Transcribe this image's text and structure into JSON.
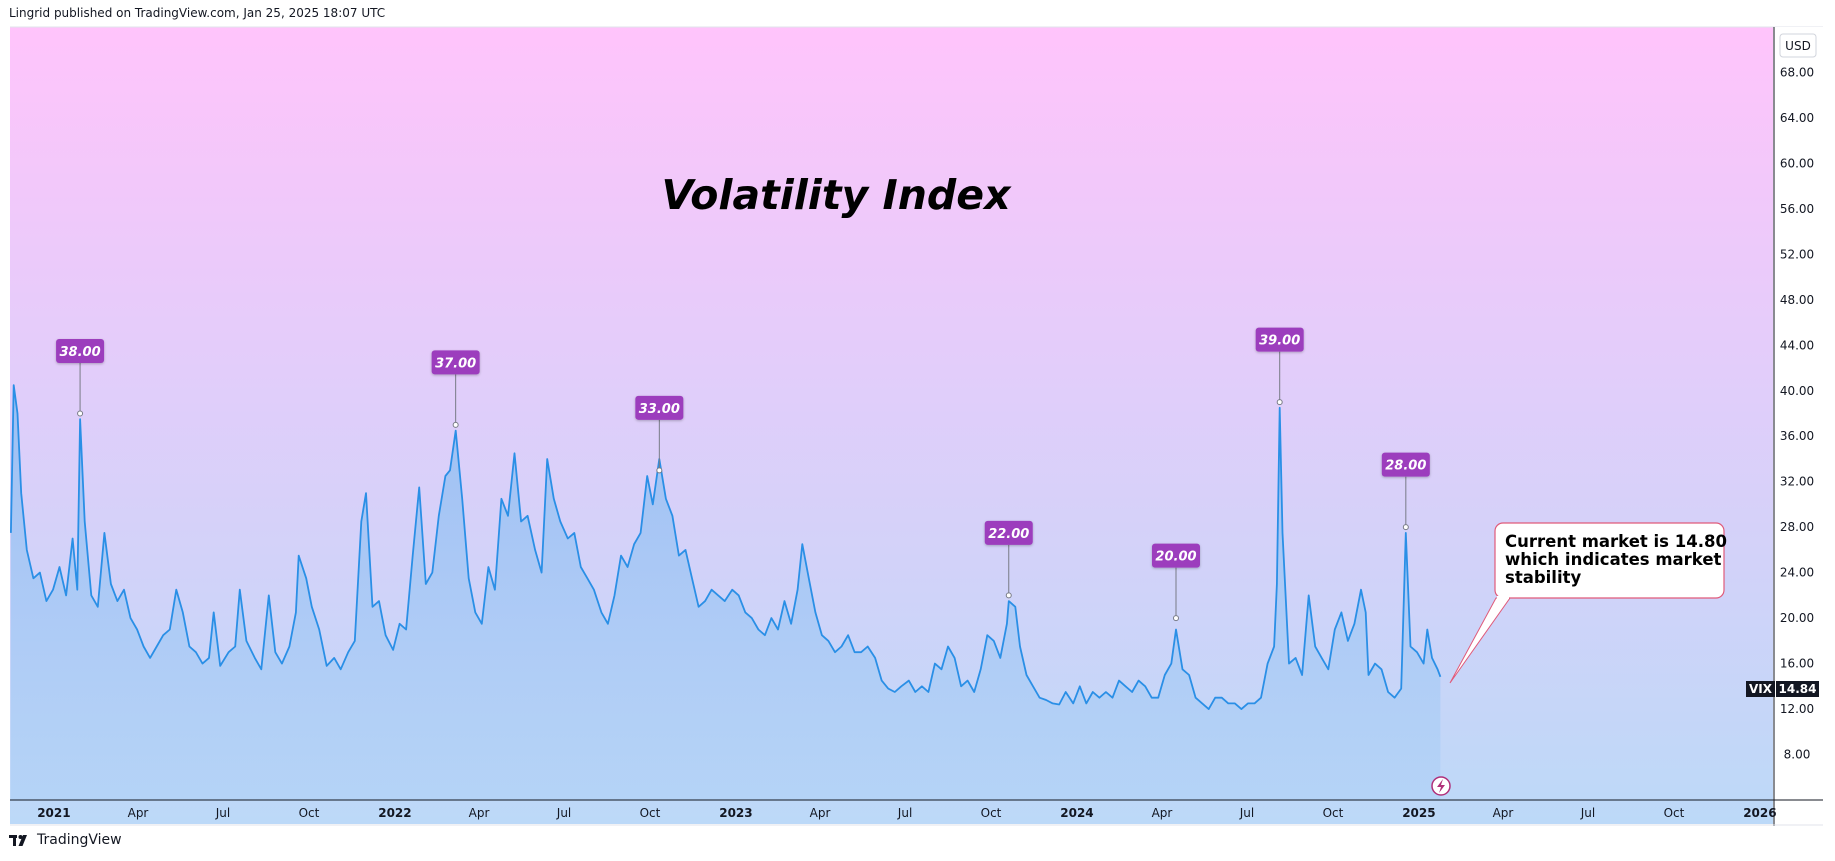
{
  "header": {
    "text": "Lingrid published on TradingView.com, Jan 25, 2025 18:07 UTC"
  },
  "footer": {
    "brand": "TradingView"
  },
  "currency": "USD",
  "last_price": {
    "symbol": "VIX",
    "value": "14.84"
  },
  "note": {
    "lines": [
      "Current market is 14.80",
      "which indicates market",
      "stability"
    ]
  },
  "colors": {
    "line": "#2a8fe6",
    "fill_top": "#8fbcf2",
    "bg_top": "#ffc4fb",
    "bg_bottom": "#bcd9f8",
    "label_bg": "#9c3dbd",
    "note_border": "#e05a7a",
    "peak_stem": "#787b86"
  },
  "chart_data": {
    "type": "area",
    "title": "Volatility Index",
    "ylim": [
      4,
      72
    ],
    "yticks": [
      "8.00",
      "12.00",
      "16.00",
      "20.00",
      "24.00",
      "28.00",
      "32.00",
      "36.00",
      "40.00",
      "44.00",
      "48.00",
      "52.00",
      "56.00",
      "60.00",
      "64.00",
      "68.00"
    ],
    "xlim": [
      "2020-11-15",
      "2026-01-15"
    ],
    "xticks": [
      {
        "label": "2021",
        "date": "2021-01-01",
        "bold": true
      },
      {
        "label": "Apr",
        "date": "2021-04-01"
      },
      {
        "label": "Jul",
        "date": "2021-07-01"
      },
      {
        "label": "Oct",
        "date": "2021-10-01"
      },
      {
        "label": "2022",
        "date": "2022-01-01",
        "bold": true
      },
      {
        "label": "Apr",
        "date": "2022-04-01"
      },
      {
        "label": "Jul",
        "date": "2022-07-01"
      },
      {
        "label": "Oct",
        "date": "2022-10-01"
      },
      {
        "label": "2023",
        "date": "2023-01-01",
        "bold": true
      },
      {
        "label": "Apr",
        "date": "2023-04-01"
      },
      {
        "label": "Jul",
        "date": "2023-07-01"
      },
      {
        "label": "Oct",
        "date": "2023-10-01"
      },
      {
        "label": "2024",
        "date": "2024-01-01",
        "bold": true
      },
      {
        "label": "Apr",
        "date": "2024-04-01"
      },
      {
        "label": "Jul",
        "date": "2024-07-01"
      },
      {
        "label": "Oct",
        "date": "2024-10-01"
      },
      {
        "label": "2025",
        "date": "2025-01-01",
        "bold": true
      },
      {
        "label": "Apr",
        "date": "2025-04-01"
      },
      {
        "label": "Jul",
        "date": "2025-07-01"
      },
      {
        "label": "Oct",
        "date": "2025-10-01"
      },
      {
        "label": "2026",
        "date": "2026-01-01",
        "bold": true
      }
    ],
    "series": [
      {
        "values": [
          [
            "2020-11-16",
            27.5
          ],
          [
            "2020-11-19",
            40.5
          ],
          [
            "2020-11-23",
            38.0
          ],
          [
            "2020-11-27",
            31.0
          ],
          [
            "2020-12-03",
            26.0
          ],
          [
            "2020-12-10",
            23.5
          ],
          [
            "2020-12-17",
            24.0
          ],
          [
            "2020-12-24",
            21.5
          ],
          [
            "2020-12-31",
            22.5
          ],
          [
            "2021-01-07",
            24.5
          ],
          [
            "2021-01-14",
            22.0
          ],
          [
            "2021-01-21",
            27.0
          ],
          [
            "2021-01-26",
            22.5
          ],
          [
            "2021-01-29",
            37.5
          ],
          [
            "2021-02-03",
            28.5
          ],
          [
            "2021-02-10",
            22.0
          ],
          [
            "2021-02-17",
            21.0
          ],
          [
            "2021-02-24",
            27.5
          ],
          [
            "2021-03-03",
            23.0
          ],
          [
            "2021-03-10",
            21.5
          ],
          [
            "2021-03-17",
            22.5
          ],
          [
            "2021-03-24",
            20.0
          ],
          [
            "2021-03-31",
            19.0
          ],
          [
            "2021-04-07",
            17.5
          ],
          [
            "2021-04-14",
            16.5
          ],
          [
            "2021-04-21",
            17.5
          ],
          [
            "2021-04-28",
            18.5
          ],
          [
            "2021-05-05",
            19.0
          ],
          [
            "2021-05-12",
            22.5
          ],
          [
            "2021-05-19",
            20.5
          ],
          [
            "2021-05-26",
            17.5
          ],
          [
            "2021-06-02",
            17.0
          ],
          [
            "2021-06-09",
            16.0
          ],
          [
            "2021-06-16",
            16.5
          ],
          [
            "2021-06-21",
            20.5
          ],
          [
            "2021-06-28",
            15.8
          ],
          [
            "2021-07-07",
            17.0
          ],
          [
            "2021-07-14",
            17.5
          ],
          [
            "2021-07-19",
            22.5
          ],
          [
            "2021-07-26",
            18.0
          ],
          [
            "2021-08-04",
            16.5
          ],
          [
            "2021-08-11",
            15.5
          ],
          [
            "2021-08-19",
            22.0
          ],
          [
            "2021-08-26",
            17.0
          ],
          [
            "2021-09-02",
            16.0
          ],
          [
            "2021-09-10",
            17.5
          ],
          [
            "2021-09-17",
            20.5
          ],
          [
            "2021-09-20",
            25.5
          ],
          [
            "2021-09-28",
            23.5
          ],
          [
            "2021-10-04",
            21.0
          ],
          [
            "2021-10-12",
            19.0
          ],
          [
            "2021-10-20",
            15.8
          ],
          [
            "2021-10-28",
            16.5
          ],
          [
            "2021-11-04",
            15.5
          ],
          [
            "2021-11-12",
            17.0
          ],
          [
            "2021-11-19",
            18.0
          ],
          [
            "2021-11-26",
            28.5
          ],
          [
            "2021-12-01",
            31.0
          ],
          [
            "2021-12-08",
            21.0
          ],
          [
            "2021-12-15",
            21.5
          ],
          [
            "2021-12-22",
            18.5
          ],
          [
            "2021-12-30",
            17.2
          ],
          [
            "2022-01-06",
            19.5
          ],
          [
            "2022-01-13",
            19.0
          ],
          [
            "2022-01-20",
            25.5
          ],
          [
            "2022-01-27",
            31.5
          ],
          [
            "2022-02-03",
            23.0
          ],
          [
            "2022-02-10",
            24.0
          ],
          [
            "2022-02-17",
            29.0
          ],
          [
            "2022-02-24",
            32.5
          ],
          [
            "2022-03-01",
            33.0
          ],
          [
            "2022-03-07",
            36.5
          ],
          [
            "2022-03-14",
            30.5
          ],
          [
            "2022-03-21",
            23.5
          ],
          [
            "2022-03-28",
            20.5
          ],
          [
            "2022-04-04",
            19.5
          ],
          [
            "2022-04-11",
            24.5
          ],
          [
            "2022-04-18",
            22.5
          ],
          [
            "2022-04-25",
            30.5
          ],
          [
            "2022-05-02",
            29.0
          ],
          [
            "2022-05-09",
            34.5
          ],
          [
            "2022-05-16",
            28.5
          ],
          [
            "2022-05-23",
            29.0
          ],
          [
            "2022-05-31",
            26.0
          ],
          [
            "2022-06-07",
            24.0
          ],
          [
            "2022-06-13",
            34.0
          ],
          [
            "2022-06-20",
            30.5
          ],
          [
            "2022-06-27",
            28.5
          ],
          [
            "2022-07-05",
            27.0
          ],
          [
            "2022-07-12",
            27.5
          ],
          [
            "2022-07-19",
            24.5
          ],
          [
            "2022-07-26",
            23.5
          ],
          [
            "2022-08-02",
            22.5
          ],
          [
            "2022-08-10",
            20.5
          ],
          [
            "2022-08-17",
            19.5
          ],
          [
            "2022-08-24",
            22.0
          ],
          [
            "2022-08-31",
            25.5
          ],
          [
            "2022-09-07",
            24.5
          ],
          [
            "2022-09-14",
            26.5
          ],
          [
            "2022-09-21",
            27.5
          ],
          [
            "2022-09-28",
            32.5
          ],
          [
            "2022-10-04",
            30.0
          ],
          [
            "2022-10-11",
            34.0
          ],
          [
            "2022-10-18",
            30.5
          ],
          [
            "2022-10-25",
            29.0
          ],
          [
            "2022-11-01",
            25.5
          ],
          [
            "2022-11-08",
            26.0
          ],
          [
            "2022-11-15",
            23.5
          ],
          [
            "2022-11-22",
            21.0
          ],
          [
            "2022-11-29",
            21.5
          ],
          [
            "2022-12-06",
            22.5
          ],
          [
            "2022-12-13",
            22.0
          ],
          [
            "2022-12-20",
            21.5
          ],
          [
            "2022-12-28",
            22.5
          ],
          [
            "2023-01-04",
            22.0
          ],
          [
            "2023-01-11",
            20.5
          ],
          [
            "2023-01-18",
            20.0
          ],
          [
            "2023-01-25",
            19.0
          ],
          [
            "2023-02-01",
            18.5
          ],
          [
            "2023-02-08",
            20.0
          ],
          [
            "2023-02-15",
            19.0
          ],
          [
            "2023-02-22",
            21.5
          ],
          [
            "2023-03-01",
            19.5
          ],
          [
            "2023-03-08",
            22.5
          ],
          [
            "2023-03-13",
            26.5
          ],
          [
            "2023-03-20",
            23.5
          ],
          [
            "2023-03-27",
            20.5
          ],
          [
            "2023-04-03",
            18.5
          ],
          [
            "2023-04-10",
            18.0
          ],
          [
            "2023-04-17",
            17.0
          ],
          [
            "2023-04-24",
            17.5
          ],
          [
            "2023-05-01",
            18.5
          ],
          [
            "2023-05-08",
            17.0
          ],
          [
            "2023-05-15",
            17.0
          ],
          [
            "2023-05-22",
            17.5
          ],
          [
            "2023-05-30",
            16.5
          ],
          [
            "2023-06-06",
            14.5
          ],
          [
            "2023-06-13",
            13.8
          ],
          [
            "2023-06-20",
            13.5
          ],
          [
            "2023-06-27",
            14.0
          ],
          [
            "2023-07-05",
            14.5
          ],
          [
            "2023-07-12",
            13.5
          ],
          [
            "2023-07-19",
            14.0
          ],
          [
            "2023-07-26",
            13.5
          ],
          [
            "2023-08-02",
            16.0
          ],
          [
            "2023-08-09",
            15.5
          ],
          [
            "2023-08-16",
            17.5
          ],
          [
            "2023-08-23",
            16.5
          ],
          [
            "2023-08-30",
            14.0
          ],
          [
            "2023-09-06",
            14.5
          ],
          [
            "2023-09-13",
            13.5
          ],
          [
            "2023-09-20",
            15.5
          ],
          [
            "2023-09-27",
            18.5
          ],
          [
            "2023-10-04",
            18.0
          ],
          [
            "2023-10-11",
            16.5
          ],
          [
            "2023-10-18",
            19.5
          ],
          [
            "2023-10-20",
            21.5
          ],
          [
            "2023-10-27",
            21.0
          ],
          [
            "2023-11-01",
            17.5
          ],
          [
            "2023-11-08",
            15.0
          ],
          [
            "2023-11-15",
            14.0
          ],
          [
            "2023-11-22",
            13.0
          ],
          [
            "2023-11-29",
            12.8
          ],
          [
            "2023-12-06",
            12.5
          ],
          [
            "2023-12-13",
            12.4
          ],
          [
            "2023-12-20",
            13.5
          ],
          [
            "2023-12-28",
            12.5
          ],
          [
            "2024-01-04",
            14.0
          ],
          [
            "2024-01-11",
            12.5
          ],
          [
            "2024-01-18",
            13.5
          ],
          [
            "2024-01-25",
            13.0
          ],
          [
            "2024-02-01",
            13.5
          ],
          [
            "2024-02-08",
            13.0
          ],
          [
            "2024-02-15",
            14.5
          ],
          [
            "2024-02-22",
            14.0
          ],
          [
            "2024-02-29",
            13.5
          ],
          [
            "2024-03-07",
            14.5
          ],
          [
            "2024-03-14",
            14.0
          ],
          [
            "2024-03-21",
            13.0
          ],
          [
            "2024-03-28",
            13.0
          ],
          [
            "2024-04-04",
            15.0
          ],
          [
            "2024-04-11",
            16.0
          ],
          [
            "2024-04-16",
            19.0
          ],
          [
            "2024-04-23",
            15.5
          ],
          [
            "2024-04-30",
            15.0
          ],
          [
            "2024-05-07",
            13.0
          ],
          [
            "2024-05-14",
            12.5
          ],
          [
            "2024-05-21",
            12.0
          ],
          [
            "2024-05-28",
            13.0
          ],
          [
            "2024-06-04",
            13.0
          ],
          [
            "2024-06-11",
            12.5
          ],
          [
            "2024-06-18",
            12.5
          ],
          [
            "2024-06-25",
            12.0
          ],
          [
            "2024-07-02",
            12.5
          ],
          [
            "2024-07-09",
            12.5
          ],
          [
            "2024-07-16",
            13.0
          ],
          [
            "2024-07-23",
            16.0
          ],
          [
            "2024-07-30",
            17.5
          ],
          [
            "2024-08-02",
            23.0
          ],
          [
            "2024-08-05",
            38.5
          ],
          [
            "2024-08-08",
            27.5
          ],
          [
            "2024-08-15",
            16.0
          ],
          [
            "2024-08-22",
            16.5
          ],
          [
            "2024-08-29",
            15.0
          ],
          [
            "2024-09-05",
            22.0
          ],
          [
            "2024-09-12",
            17.5
          ],
          [
            "2024-09-19",
            16.5
          ],
          [
            "2024-09-26",
            15.5
          ],
          [
            "2024-10-03",
            19.0
          ],
          [
            "2024-10-10",
            20.5
          ],
          [
            "2024-10-17",
            18.0
          ],
          [
            "2024-10-24",
            19.5
          ],
          [
            "2024-10-31",
            22.5
          ],
          [
            "2024-11-05",
            20.5
          ],
          [
            "2024-11-08",
            15.0
          ],
          [
            "2024-11-15",
            16.0
          ],
          [
            "2024-11-22",
            15.5
          ],
          [
            "2024-11-29",
            13.5
          ],
          [
            "2024-12-06",
            13.0
          ],
          [
            "2024-12-13",
            13.8
          ],
          [
            "2024-12-18",
            27.5
          ],
          [
            "2024-12-23",
            17.5
          ],
          [
            "2024-12-30",
            17.0
          ],
          [
            "2025-01-06",
            16.0
          ],
          [
            "2025-01-10",
            19.0
          ],
          [
            "2025-01-15",
            16.5
          ],
          [
            "2025-01-21",
            15.5
          ],
          [
            "2025-01-24",
            14.84
          ]
        ]
      }
    ],
    "annotations": [
      {
        "label": "38.00",
        "date": "2021-01-29",
        "value": 38.0
      },
      {
        "label": "37.00",
        "date": "2022-03-07",
        "value": 37.0
      },
      {
        "label": "33.00",
        "date": "2022-10-11",
        "value": 33.0
      },
      {
        "label": "22.00",
        "date": "2023-10-20",
        "value": 22.0
      },
      {
        "label": "20.00",
        "date": "2024-04-16",
        "value": 20.0
      },
      {
        "label": "39.00",
        "date": "2024-08-05",
        "value": 39.0
      },
      {
        "label": "28.00",
        "date": "2024-12-18",
        "value": 28.0
      }
    ]
  }
}
